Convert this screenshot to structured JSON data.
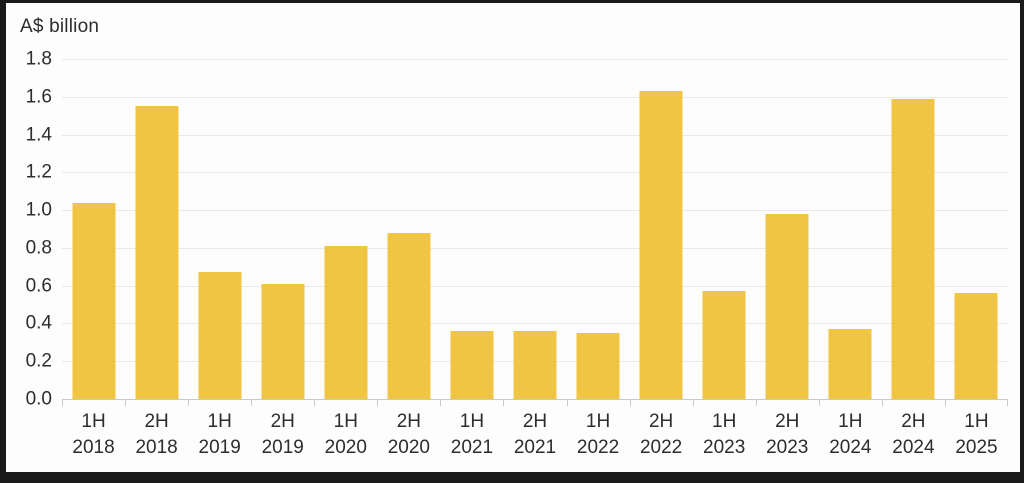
{
  "window": {
    "frame_color": "#1a1a1a",
    "panel_color": "#fdfdfd"
  },
  "colors": {
    "bar": "#F1C544",
    "gridline": "#e9e9e9",
    "axis": "#c9c9c9",
    "text": "#2d2d2d"
  },
  "chart_data": {
    "type": "bar",
    "title": "A$ billion",
    "categories": [
      {
        "half": "1H",
        "year": "2018"
      },
      {
        "half": "2H",
        "year": "2018"
      },
      {
        "half": "1H",
        "year": "2019"
      },
      {
        "half": "2H",
        "year": "2019"
      },
      {
        "half": "1H",
        "year": "2020"
      },
      {
        "half": "2H",
        "year": "2020"
      },
      {
        "half": "1H",
        "year": "2021"
      },
      {
        "half": "2H",
        "year": "2021"
      },
      {
        "half": "1H",
        "year": "2022"
      },
      {
        "half": "2H",
        "year": "2022"
      },
      {
        "half": "1H",
        "year": "2023"
      },
      {
        "half": "2H",
        "year": "2023"
      },
      {
        "half": "1H",
        "year": "2024"
      },
      {
        "half": "2H",
        "year": "2024"
      },
      {
        "half": "1H",
        "year": "2025"
      }
    ],
    "values": [
      1.04,
      1.55,
      0.67,
      0.61,
      0.81,
      0.88,
      0.36,
      0.36,
      0.35,
      1.63,
      0.57,
      0.98,
      0.37,
      1.59,
      0.56
    ],
    "xlabel": "",
    "ylabel": "A$ billion",
    "ylim": [
      0,
      1.8
    ],
    "y_step": 0.2,
    "y_tick_labels": [
      "0.0",
      "0.2",
      "0.4",
      "0.6",
      "0.8",
      "1.0",
      "1.2",
      "1.4",
      "1.6",
      "1.8"
    ],
    "grid": true,
    "legend": false,
    "bar_color": "#F1C544"
  }
}
